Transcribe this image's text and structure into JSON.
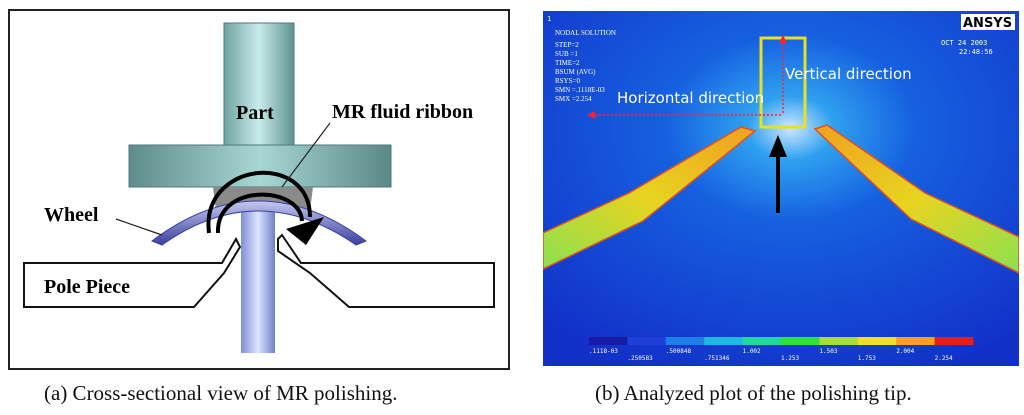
{
  "panel_a": {
    "labels": {
      "part": "Part",
      "mr_fluid_ribbon": "MR fluid ribbon",
      "wheel": "Wheel",
      "pole_piece": "Pole Piece"
    },
    "caption": "(a) Cross-sectional view of MR polishing."
  },
  "panel_b": {
    "brand": "ANSYS",
    "window_number": "1",
    "solution_lines": [
      "NODAL SOLUTION",
      "STEP=2",
      "SUB =1",
      "TIME=2",
      "BSUM    (AVG)",
      "RSYS=0",
      "SMN =.1118E-03",
      "SMX =2.254"
    ],
    "date": "OCT 24 2003",
    "time": "22:48:56",
    "vertical_label": "Vertical direction",
    "horizontal_label": "Horizontal direction",
    "legend_top": [
      ".1118-03",
      ".500848",
      "1.002",
      "1.503",
      "2.004"
    ],
    "legend_bottom": [
      ".250583",
      ".751346",
      "1.253",
      "1.753",
      "2.254"
    ],
    "legend_colors": [
      "#1a1aa8",
      "#1f3fd8",
      "#1f7fe8",
      "#20b8e0",
      "#20d8a0",
      "#30e040",
      "#a8e030",
      "#f0e020",
      "#f8a020",
      "#e02020"
    ],
    "caption": "(b) Analyzed plot of the polishing tip."
  }
}
